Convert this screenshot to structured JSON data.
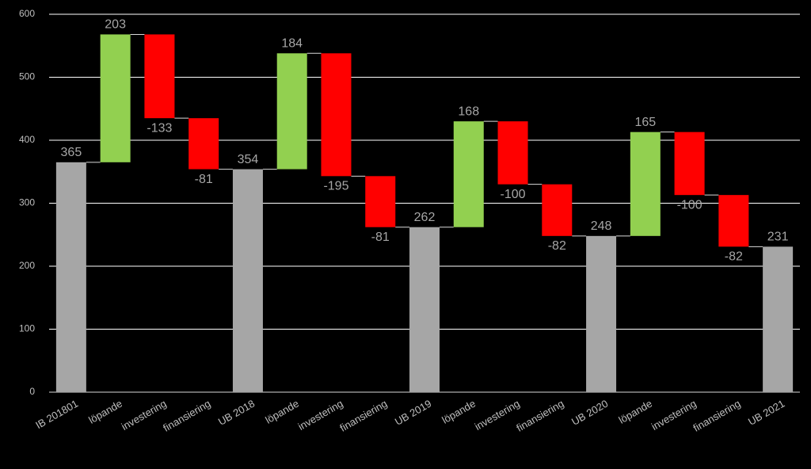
{
  "chart_data": {
    "type": "waterfall",
    "categories": [
      "IB 201801",
      "löpande",
      "investering",
      "finansiering",
      "UB 2018",
      "löpande",
      "investering",
      "finansiering",
      "UB 2019",
      "löpande",
      "investering",
      "finansiering",
      "UB 2020",
      "löpande",
      "investering",
      "finansiering",
      "UB 2021"
    ],
    "values": [
      365,
      203,
      -133,
      -81,
      354,
      184,
      -195,
      -81,
      262,
      168,
      -100,
      -82,
      248,
      165,
      -100,
      -82,
      231
    ],
    "measure": [
      "absolute",
      "relative",
      "relative",
      "relative",
      "absolute",
      "relative",
      "relative",
      "relative",
      "absolute",
      "relative",
      "relative",
      "relative",
      "absolute",
      "relative",
      "relative",
      "relative",
      "absolute"
    ],
    "colors": {
      "total": "#a6a6a6",
      "increase": "#92d050",
      "decrease": "#ff0000"
    },
    "ylim": [
      0,
      600
    ],
    "yticks": [
      0,
      100,
      200,
      300,
      400,
      500,
      600
    ],
    "grid": true
  }
}
